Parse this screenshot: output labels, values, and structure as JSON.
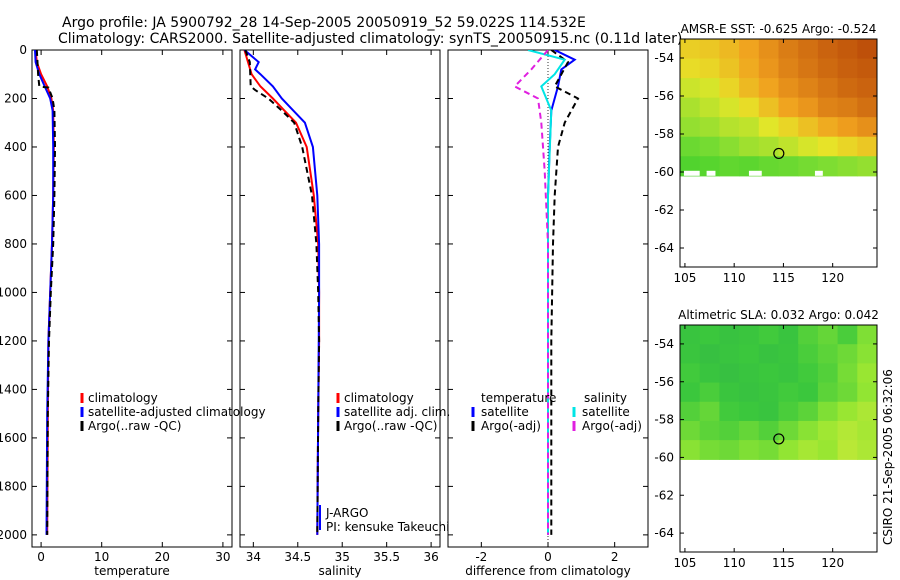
{
  "header": {
    "line1": "Argo profile: JA 5900792_28 14-Sep-2005 20050919_52 59.022S 114.532E",
    "line2": "Climatology: CARS2000. Satellite-adjusted climatology: synTS_20050915.nc (0.11d later)"
  },
  "footer": {
    "credit": "CSIRO 21-Sep-2005 06:32:06"
  },
  "colors": {
    "climatology": "#ff0000",
    "satellite": "#0000ff",
    "argo": "#000000",
    "sal_satellite": "#00e5e5",
    "sal_argo": "#e020e0",
    "satpoor": "#ffffff"
  },
  "chart_data": [
    {
      "id": "temperature",
      "type": "line",
      "xlabel": "temperature",
      "ylabel": "",
      "xlim": [
        -1.5,
        31.5
      ],
      "ylim": [
        2050,
        0
      ],
      "xticks": [
        0,
        10,
        20,
        30
      ],
      "xtick_labels": [
        "0",
        "10",
        "20",
        "30"
      ],
      "yticks": [
        0,
        200,
        400,
        600,
        800,
        1000,
        1200,
        1400,
        1600,
        1800,
        2000
      ],
      "ytick_labels": [
        "0",
        "200",
        "400",
        "600",
        "800",
        "1000",
        "1200",
        "1400",
        "1600",
        "1800",
        "2000"
      ],
      "legend": {
        "position": "center-right",
        "items": [
          {
            "label": "climatology",
            "color": "#ff0000"
          },
          {
            "label": "satellite-adjusted climatology",
            "color": "#0000ff"
          },
          {
            "label": "Argo(..raw -QC)",
            "color": "#000000"
          }
        ]
      },
      "series": [
        {
          "name": "climatology",
          "color": "#ff0000",
          "dash": false,
          "x": [
            -0.9,
            -0.7,
            0.0,
            1.0,
            1.7,
            2.0,
            2.1,
            2.0,
            1.8,
            1.5,
            1.2,
            1.1,
            1.0
          ],
          "y": [
            0,
            50,
            100,
            150,
            200,
            250,
            400,
            600,
            800,
            1000,
            1200,
            1500,
            2000
          ]
        },
        {
          "name": "satellite-adjusted climatology",
          "color": "#0000ff",
          "dash": false,
          "x": [
            -1.0,
            -0.9,
            -0.3,
            0.6,
            1.5,
            1.9,
            2.0,
            2.0,
            1.8,
            1.5,
            1.2,
            1.0,
            0.9
          ],
          "y": [
            0,
            50,
            100,
            150,
            200,
            250,
            400,
            600,
            800,
            1000,
            1200,
            1500,
            2000
          ]
        },
        {
          "name": "Argo(..raw -QC)",
          "color": "#000000",
          "dash": true,
          "x": [
            -0.7,
            -0.6,
            -0.5,
            -0.3,
            1.2,
            1.9,
            2.2,
            2.3,
            2.2,
            2.0,
            1.6,
            1.3,
            1.1,
            1.0
          ],
          "y": [
            0,
            50,
            100,
            150,
            155,
            200,
            250,
            400,
            600,
            800,
            1000,
            1200,
            1500,
            2000
          ]
        }
      ]
    },
    {
      "id": "salinity",
      "type": "line",
      "xlabel": "salinity",
      "ylabel": "",
      "xlim": [
        33.85,
        36.1
      ],
      "ylim": [
        2050,
        0
      ],
      "xticks": [
        34,
        34.5,
        35,
        35.5,
        36
      ],
      "xtick_labels": [
        "34",
        "34.5",
        "35",
        "35.5",
        "36"
      ],
      "yticks": [
        0,
        200,
        400,
        600,
        800,
        1000,
        1200,
        1400,
        1600,
        1800,
        2000
      ],
      "ytick_labels": [],
      "legend": {
        "position": "center-right",
        "items": [
          {
            "label": "climatology",
            "color": "#ff0000"
          },
          {
            "label": "satellite adj. clim.",
            "color": "#0000ff"
          },
          {
            "label": "Argo(..raw -QC)",
            "color": "#000000"
          }
        ]
      },
      "annotations": [
        "J-ARGO",
        "PI: kensuke Takeuchi"
      ],
      "series": [
        {
          "name": "climatology",
          "color": "#ff0000",
          "dash": false,
          "x": [
            33.9,
            33.94,
            33.98,
            34.08,
            34.22,
            34.35,
            34.48,
            34.6,
            34.68,
            34.73,
            34.74,
            34.74,
            34.73,
            34.72
          ],
          "y": [
            0,
            50,
            100,
            150,
            200,
            250,
            300,
            400,
            600,
            800,
            1000,
            1200,
            1500,
            2000
          ]
        },
        {
          "name": "satellite adj. clim.",
          "color": "#0000ff",
          "dash": false,
          "x": [
            33.9,
            34.06,
            34.02,
            34.08,
            34.22,
            34.32,
            34.45,
            34.58,
            34.67,
            34.72,
            34.74,
            34.74,
            34.73,
            34.72
          ],
          "y": [
            0,
            50,
            80,
            100,
            150,
            200,
            250,
            300,
            400,
            600,
            800,
            1000,
            1500,
            2000
          ]
        },
        {
          "name": "Argo(..raw -QC)",
          "color": "#000000",
          "dash": true,
          "x": [
            33.91,
            33.96,
            33.97,
            34.02,
            34.17,
            34.32,
            34.46,
            34.55,
            34.66,
            34.71,
            34.73,
            34.74,
            34.73,
            34.72
          ],
          "y": [
            0,
            50,
            150,
            165,
            200,
            250,
            300,
            400,
            600,
            800,
            1000,
            1200,
            1500,
            2000
          ]
        }
      ]
    },
    {
      "id": "difference",
      "type": "line",
      "xlabel": "difference from climatology",
      "ylabel": "",
      "xlim": [
        -3.0,
        3.0
      ],
      "ylim": [
        2050,
        0
      ],
      "xticks": [
        -2,
        0,
        2
      ],
      "xtick_labels": [
        "-2",
        "0",
        "2"
      ],
      "yticks": [
        0,
        200,
        400,
        600,
        800,
        1000,
        1200,
        1400,
        1600,
        1800,
        2000
      ],
      "ytick_labels": [],
      "legend": {
        "position": "center",
        "headers": [
          "temperature",
          "salinity"
        ],
        "items": [
          {
            "label": "satellite",
            "color": "#0000ff",
            "column": 0
          },
          {
            "label": "Argo(-adj)",
            "color": "#000000",
            "column": 0
          },
          {
            "label": "satellite",
            "color": "#00e5e5",
            "column": 1
          },
          {
            "label": "Argo(-adj)",
            "color": "#e020e0",
            "column": 1
          }
        ]
      },
      "series": [
        {
          "name": "temperature satellite",
          "color": "#0000ff",
          "dash": false,
          "x": [
            0.2,
            0.8,
            0.4,
            0.3,
            0.1,
            0.05,
            0.0,
            0.0,
            0.0,
            0.0,
            0.0
          ],
          "y": [
            0,
            40,
            80,
            150,
            250,
            400,
            600,
            800,
            1200,
            1600,
            2000
          ]
        },
        {
          "name": "temperature Argo(-adj)",
          "color": "#000000",
          "dash": true,
          "x": [
            0.1,
            0.6,
            0.2,
            0.9,
            0.5,
            0.3,
            0.2,
            0.15,
            0.1,
            0.1,
            0.1
          ],
          "y": [
            0,
            50,
            150,
            200,
            300,
            400,
            600,
            800,
            1200,
            1600,
            2000
          ]
        },
        {
          "name": "salinity satellite",
          "color": "#00e5e5",
          "dash": false,
          "x": [
            -0.6,
            0.5,
            0.2,
            -0.2,
            0.1,
            0.0,
            0.0,
            0.0,
            0.0
          ],
          "y": [
            0,
            40,
            100,
            150,
            250,
            600,
            1000,
            1500,
            2000
          ]
        },
        {
          "name": "salinity Argo(-adj)",
          "color": "#e020e0",
          "dash": true,
          "x": [
            0.0,
            -0.5,
            -1.0,
            -0.3,
            -0.2,
            -0.1,
            0.0,
            0.0,
            0.0
          ],
          "y": [
            0,
            80,
            150,
            200,
            300,
            500,
            800,
            1200,
            2000
          ]
        }
      ]
    },
    {
      "id": "sst_map",
      "type": "heatmap",
      "title": "AMSR-E SST: -0.625 Argo: -0.524",
      "xlim": [
        104.5,
        124.5
      ],
      "ylim": [
        -65,
        -53
      ],
      "data_ylim": [
        -60.2,
        -53
      ],
      "xticks": [
        105,
        110,
        115,
        120
      ],
      "xtick_labels": [
        "105",
        "110",
        "115",
        "120"
      ],
      "yticks": [
        -54,
        -56,
        -58,
        -60,
        -62,
        -64
      ],
      "ytick_labels": [
        "-54",
        "-56",
        "-58",
        "-60",
        "-62",
        "-64"
      ],
      "marker": {
        "lon": 114.532,
        "lat": -59.022
      },
      "grid": [
        [
          0.62,
          0.64,
          0.68,
          0.74,
          0.8,
          0.86,
          0.9,
          0.94,
          0.97,
          1.0
        ],
        [
          0.58,
          0.6,
          0.65,
          0.72,
          0.78,
          0.84,
          0.88,
          0.92,
          0.95,
          0.97
        ],
        [
          0.5,
          0.52,
          0.6,
          0.68,
          0.74,
          0.8,
          0.84,
          0.88,
          0.92,
          0.94
        ],
        [
          0.44,
          0.48,
          0.52,
          0.58,
          0.66,
          0.74,
          0.78,
          0.84,
          0.86,
          0.9
        ],
        [
          0.4,
          0.42,
          0.46,
          0.48,
          0.54,
          0.6,
          0.66,
          0.72,
          0.76,
          0.8
        ],
        [
          0.3,
          0.34,
          0.38,
          0.42,
          0.44,
          0.48,
          0.52,
          0.56,
          0.6,
          0.64
        ],
        [
          0.2,
          0.22,
          0.26,
          0.24,
          0.28,
          0.3,
          0.34,
          0.36,
          0.38,
          0.4
        ]
      ]
    },
    {
      "id": "sla_map",
      "type": "heatmap",
      "title": "Altimetric SLA: 0.032 Argo: 0.042",
      "xlim": [
        104.5,
        124.5
      ],
      "ylim": [
        -65,
        -53
      ],
      "data_ylim": [
        -60.1,
        -53
      ],
      "xticks": [
        105,
        110,
        115,
        120
      ],
      "xtick_labels": [
        "105",
        "110",
        "115",
        "120"
      ],
      "yticks": [
        -54,
        -56,
        -58,
        -60,
        -62,
        -64
      ],
      "ytick_labels": [
        "-54",
        "-56",
        "-58",
        "-60",
        "-62",
        "-64"
      ],
      "marker": {
        "lon": 114.532,
        "lat": -59.022
      },
      "grid": [
        [
          0.3,
          0.34,
          0.28,
          0.32,
          0.36,
          0.3,
          0.4,
          0.44,
          0.38,
          0.5
        ],
        [
          0.32,
          0.26,
          0.3,
          0.34,
          0.28,
          0.32,
          0.38,
          0.42,
          0.46,
          0.52
        ],
        [
          0.36,
          0.3,
          0.26,
          0.3,
          0.34,
          0.3,
          0.36,
          0.4,
          0.48,
          0.56
        ],
        [
          0.34,
          0.38,
          0.32,
          0.28,
          0.32,
          0.36,
          0.34,
          0.42,
          0.46,
          0.54
        ],
        [
          0.4,
          0.44,
          0.36,
          0.34,
          0.3,
          0.38,
          0.42,
          0.5,
          0.56,
          0.62
        ],
        [
          0.46,
          0.42,
          0.4,
          0.44,
          0.4,
          0.46,
          0.52,
          0.58,
          0.64,
          0.6
        ],
        [
          0.52,
          0.48,
          0.46,
          0.5,
          0.48,
          0.54,
          0.6,
          0.56,
          0.66,
          0.62
        ]
      ]
    }
  ]
}
